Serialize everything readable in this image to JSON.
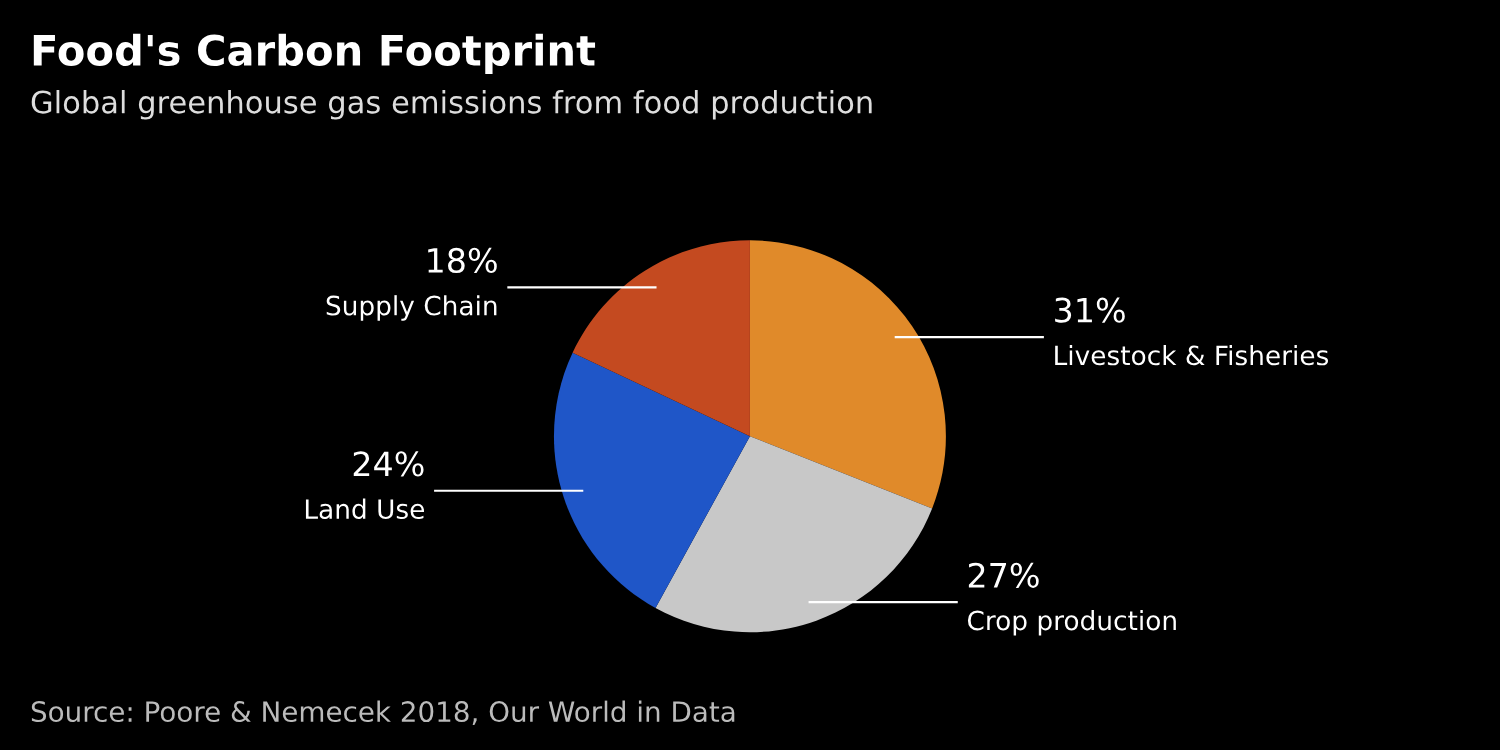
{
  "chart_data": {
    "type": "pie",
    "title": "Food's Carbon Footprint",
    "subtitle": "Global greenhouse gas emissions from food production",
    "categories": [
      "Livestock & Fisheries",
      "Crop production",
      "Land Use",
      "Supply Chain"
    ],
    "values": [
      31,
      27,
      24,
      18
    ],
    "value_labels": [
      "31%",
      "27%",
      "24%",
      "18%"
    ],
    "colors": [
      "#e08a2a",
      "#c8c8c8",
      "#1f56c8",
      "#c44a20"
    ],
    "annotations": [
      "Source: Poore & Nemecek 2018, Our World in Data"
    ]
  }
}
